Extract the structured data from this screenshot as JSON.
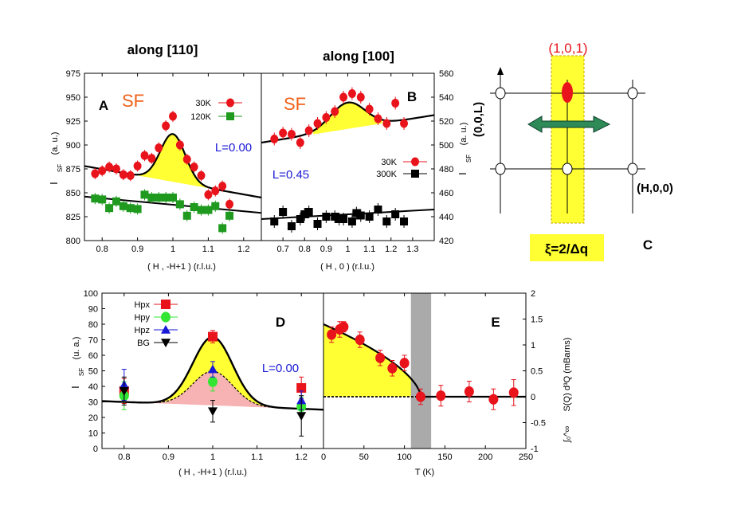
{
  "colors": {
    "red": "#e8131b",
    "green": "#1f9a1f",
    "black": "#000000",
    "yellow": "#ffff33",
    "pink": "#f7b3b3",
    "blue": "#1a1ad6",
    "orange": "#f06018",
    "gray": "#aaaaaa",
    "arrow": "#2e8b57",
    "hpy": "#33e633"
  },
  "chart_data": [
    {
      "id": "A",
      "type": "scatter",
      "title": "along [110]",
      "panel_label": "A",
      "sf_label": "SF",
      "L_label": "L=0.00",
      "xlabel": "( H , -H+1 ) (r.l.u.)",
      "ylabel": "I_SF (a. u.)",
      "ylabel_main": "I",
      "ylabel_sub": "SF",
      "ylabel_unit": "(a. u.)",
      "xlim": [
        0.75,
        1.25
      ],
      "ylim": [
        800,
        975
      ],
      "xticks": [
        "0.8",
        "0.9",
        "1",
        "1.1",
        "1.2"
      ],
      "xtick_vals": [
        0.8,
        0.9,
        1.0,
        1.1,
        1.2
      ],
      "yticks": [
        "800",
        "825",
        "850",
        "875",
        "900",
        "925",
        "950",
        "975"
      ],
      "ytick_vals": [
        800,
        825,
        850,
        875,
        900,
        925,
        950,
        975
      ],
      "series": [
        {
          "name": "30K",
          "marker": "circle",
          "color": "#e8131b",
          "x": [
            0.78,
            0.8,
            0.82,
            0.84,
            0.86,
            0.88,
            0.9,
            0.92,
            0.94,
            0.96,
            0.98,
            1.0,
            1.02,
            1.04,
            1.06,
            1.08,
            1.1,
            1.12,
            1.14,
            1.16
          ],
          "y": [
            870,
            873,
            877,
            875,
            869,
            868,
            878,
            889,
            886,
            897,
            920,
            930,
            900,
            885,
            877,
            868,
            848,
            852,
            857,
            838
          ]
        },
        {
          "name": "120K",
          "marker": "square",
          "color": "#1f9a1f",
          "x": [
            0.78,
            0.8,
            0.82,
            0.84,
            0.86,
            0.88,
            0.9,
            0.92,
            0.94,
            0.96,
            0.98,
            1.0,
            1.02,
            1.04,
            1.06,
            1.08,
            1.1,
            1.12,
            1.14,
            1.16
          ],
          "y": [
            844,
            843,
            834,
            841,
            836,
            834,
            833,
            848,
            845,
            845,
            845,
            845,
            838,
            826,
            835,
            832,
            832,
            836,
            813,
            826
          ]
        }
      ],
      "fit_peak": {
        "base_left": 878,
        "base_right": 845,
        "amplitude": 50,
        "center": 1.0,
        "sigma": 0.035
      },
      "fit_line": {
        "y_left": 846,
        "y_right": 829
      }
    },
    {
      "id": "B",
      "type": "scatter",
      "title": "along  [100]",
      "panel_label": "B",
      "sf_label": "SF",
      "L_label": "L=0.45",
      "xlabel": "( H , 0 ) (r.l.u.)",
      "ylabel": "I_SF (a. u.)",
      "ylabel_main": "I",
      "ylabel_sub": "SF",
      "ylabel_unit": "(a. u.)",
      "xlim": [
        0.6,
        1.4
      ],
      "ylim": [
        420,
        560
      ],
      "xticks": [
        "0.7",
        "0.8",
        "0.9",
        "1",
        "1.1",
        "1.2",
        "1.3"
      ],
      "xtick_vals": [
        0.7,
        0.8,
        0.9,
        1.0,
        1.1,
        1.2,
        1.3
      ],
      "yticks": [
        "420",
        "440",
        "460",
        "480",
        "500",
        "520",
        "540",
        "560"
      ],
      "ytick_vals": [
        420,
        440,
        460,
        480,
        500,
        520,
        540,
        560
      ],
      "series": [
        {
          "name": "30K",
          "marker": "circle",
          "color": "#e8131b",
          "x": [
            0.66,
            0.7,
            0.74,
            0.78,
            0.82,
            0.86,
            0.9,
            0.94,
            0.98,
            1.02,
            1.06,
            1.1,
            1.14,
            1.18,
            1.22,
            1.26
          ],
          "y": [
            505,
            510,
            509,
            502,
            512,
            518,
            523,
            528,
            540,
            543,
            540,
            530,
            522,
            518,
            535,
            518
          ]
        },
        {
          "name": "300K",
          "marker": "square",
          "color": "#000000",
          "x": [
            0.66,
            0.7,
            0.74,
            0.78,
            0.8,
            0.82,
            0.86,
            0.9,
            0.94,
            0.96,
            0.98,
            1.02,
            1.04,
            1.06,
            1.1,
            1.14,
            1.18,
            1.22,
            1.26
          ],
          "y": [
            436,
            444,
            432,
            438,
            442,
            444,
            434,
            440,
            440,
            438,
            438,
            436,
            443,
            441,
            440,
            446,
            436,
            442,
            436
          ]
        }
      ],
      "fit_peak": {
        "base_left": 502,
        "base_right": 525,
        "amplitude": 22,
        "center": 1.0,
        "sigma": 0.08
      },
      "fit_line": {
        "y_left": 438,
        "y_right": 446
      }
    },
    {
      "id": "D",
      "type": "scatter",
      "panel_label": "D",
      "L_label": "L=0.00",
      "xlabel": "( H , -H+1 ) (r.l.u.)",
      "ylabel": "I_SF (u. a.)",
      "ylabel_main": "I",
      "ylabel_sub": "SF",
      "ylabel_unit": "(u. a.)",
      "xlim": [
        0.75,
        1.25
      ],
      "ylim": [
        0,
        100
      ],
      "xticks": [
        "0.8",
        "0.9",
        "1",
        "1.1",
        "1.2"
      ],
      "xtick_vals": [
        0.8,
        0.9,
        1.0,
        1.1,
        1.2
      ],
      "yticks": [
        "0",
        "10",
        "20",
        "30",
        "40",
        "50",
        "60",
        "70",
        "80",
        "90",
        "100"
      ],
      "ytick_vals": [
        0,
        10,
        20,
        30,
        40,
        50,
        60,
        70,
        80,
        90,
        100
      ],
      "series": [
        {
          "name": "Hpx",
          "marker": "square",
          "color": "#e8131b",
          "x": [
            0.8,
            1.0,
            1.2
          ],
          "y": [
            37,
            72,
            39
          ],
          "err": [
            8,
            4,
            7
          ]
        },
        {
          "name": "Hpy",
          "marker": "circle",
          "color": "#33e633",
          "x": [
            0.8,
            1.0,
            1.2
          ],
          "y": [
            34,
            43,
            27
          ],
          "err": [
            9,
            6,
            6
          ]
        },
        {
          "name": "Hpz",
          "marker": "triangle-up",
          "color": "#1a1ad6",
          "x": [
            0.8,
            1.0,
            1.2
          ],
          "y": [
            41,
            51,
            31
          ],
          "err": [
            10,
            5,
            6
          ]
        },
        {
          "name": "BG",
          "marker": "triangle-down",
          "color": "#000000",
          "x": [
            0.8,
            1.0,
            1.2
          ],
          "y": [
            37,
            24,
            21
          ],
          "err": [
            9,
            7,
            13
          ]
        }
      ],
      "fit_peak": {
        "base_left": 30.5,
        "base_right": 25,
        "amplitude": 44,
        "center": 1.0,
        "sigma": 0.045
      },
      "fit_dashed": {
        "base_left": 30.5,
        "base_right": 25,
        "amplitude": 22,
        "center": 1.0,
        "sigma": 0.045
      }
    },
    {
      "id": "E",
      "type": "scatter",
      "panel_label": "E",
      "xlabel": "T (K)",
      "ylabel": "S(Q) d³Q (mBarns)",
      "integral_label": "∫₀^∞",
      "xlim": [
        0,
        250
      ],
      "ylim": [
        -1,
        2
      ],
      "xticks": [
        "0",
        "50",
        "100",
        "150",
        "200",
        "250"
      ],
      "xtick_vals": [
        0,
        50,
        100,
        150,
        200,
        250
      ],
      "yticks": [
        "-1",
        "-0.5",
        "0",
        "0.5",
        "1",
        "1.5",
        "2"
      ],
      "ytick_vals": [
        -1,
        -0.5,
        0,
        0.5,
        1,
        1.5,
        2
      ],
      "series": [
        {
          "name": "data",
          "marker": "circle",
          "color": "#e8131b",
          "x": [
            10,
            20,
            25,
            45,
            70,
            85,
            100,
            120,
            145,
            180,
            210,
            235
          ],
          "y": [
            1.2,
            1.3,
            1.35,
            1.1,
            0.75,
            0.55,
            0.65,
            0.0,
            0.02,
            0.1,
            -0.05,
            0.08
          ],
          "err": [
            0.15,
            0.15,
            0.1,
            0.15,
            0.15,
            0.15,
            0.15,
            0.15,
            0.2,
            0.2,
            0.2,
            0.25
          ]
        }
      ],
      "fit": {
        "amplitude": 1.4,
        "Tc": 120,
        "exponent": 0.6
      },
      "gray_band": [
        108,
        133
      ]
    }
  ],
  "schematic": {
    "panel_label": "C",
    "top_label": "(1,0,1)",
    "l_axis_label": "(0,0,L)",
    "h_axis_label": "(H,0,0)",
    "xi_label": "ξ=2/Δq"
  }
}
